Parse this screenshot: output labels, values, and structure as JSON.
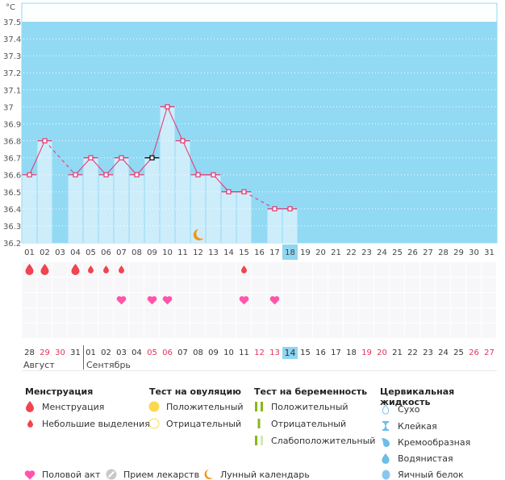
{
  "chart_data": {
    "type": "line",
    "unit_label": "°C",
    "y_ticks": [
      "37.5",
      "37.4",
      "37.3",
      "37.2",
      "37.1",
      "37",
      "36.9",
      "36.8",
      "36.7",
      "36.6",
      "36.5",
      "36.4",
      "36.3",
      "36.2"
    ],
    "ylim": [
      36.2,
      37.5
    ],
    "x_ticks": [
      "01",
      "02",
      "03",
      "04",
      "05",
      "06",
      "07",
      "08",
      "09",
      "10",
      "11",
      "12",
      "13",
      "14",
      "15",
      "16",
      "17",
      "18",
      "19",
      "20",
      "21",
      "22",
      "23",
      "24",
      "25",
      "26",
      "27",
      "28",
      "29",
      "30",
      "31"
    ],
    "current_day": "18",
    "grid": "dotted-horizontal",
    "series": [
      {
        "name": "temperature",
        "points": [
          {
            "day": 1,
            "value": 36.6
          },
          {
            "day": 2,
            "value": 36.8
          },
          {
            "day": 4,
            "value": 36.6
          },
          {
            "day": 5,
            "value": 36.7
          },
          {
            "day": 6,
            "value": 36.6
          },
          {
            "day": 7,
            "value": 36.7
          },
          {
            "day": 8,
            "value": 36.6
          },
          {
            "day": 9,
            "value": 36.7,
            "highlight": true
          },
          {
            "day": 10,
            "value": 37.0
          },
          {
            "day": 11,
            "value": 36.8
          },
          {
            "day": 12,
            "value": 36.6
          },
          {
            "day": 13,
            "value": 36.6
          },
          {
            "day": 14,
            "value": 36.5
          },
          {
            "day": 15,
            "value": 36.5
          },
          {
            "day": 17,
            "value": 36.4
          },
          {
            "day": 18,
            "value": 36.4
          }
        ],
        "dashed_gaps": [
          [
            2,
            4
          ],
          [
            15,
            17
          ]
        ]
      }
    ],
    "moon_marker_day": 12
  },
  "colors": {
    "plot_bg": "#92d9f4",
    "bar_fill": "#cdedfb",
    "line": "#e8306a",
    "menstruation": "#f04450",
    "heart": "#ff55aa",
    "moon": "#f0931c",
    "ovulation_pos": "#fcd850",
    "pregnancy": "#88b818",
    "pregnancy_weak": "#d6e8b4",
    "cervical": "#88c8ee",
    "weekend": "#e8305a",
    "today_bg": "#8fd6f2"
  },
  "events": {
    "menstruation_heavy_days": [
      1,
      2,
      4
    ],
    "menstruation_light_days": [
      5,
      6,
      7,
      15
    ],
    "intercourse_days": [
      7,
      9,
      10,
      15,
      17
    ]
  },
  "calendar": {
    "dates": [
      {
        "label": "28",
        "weekend": false
      },
      {
        "label": "29",
        "weekend": true
      },
      {
        "label": "30",
        "weekend": true
      },
      {
        "label": "31",
        "weekend": false
      },
      {
        "label": "01",
        "weekend": false
      },
      {
        "label": "02",
        "weekend": false
      },
      {
        "label": "03",
        "weekend": false
      },
      {
        "label": "04",
        "weekend": false
      },
      {
        "label": "05",
        "weekend": true
      },
      {
        "label": "06",
        "weekend": true
      },
      {
        "label": "07",
        "weekend": false
      },
      {
        "label": "08",
        "weekend": false
      },
      {
        "label": "09",
        "weekend": false
      },
      {
        "label": "10",
        "weekend": false
      },
      {
        "label": "11",
        "weekend": false
      },
      {
        "label": "12",
        "weekend": true
      },
      {
        "label": "13",
        "weekend": true
      },
      {
        "label": "14",
        "weekend": false,
        "today": true
      },
      {
        "label": "15",
        "weekend": false
      },
      {
        "label": "16",
        "weekend": false
      },
      {
        "label": "17",
        "weekend": false
      },
      {
        "label": "18",
        "weekend": false
      },
      {
        "label": "19",
        "weekend": true
      },
      {
        "label": "20",
        "weekend": true
      },
      {
        "label": "21",
        "weekend": false
      },
      {
        "label": "22",
        "weekend": false
      },
      {
        "label": "23",
        "weekend": false
      },
      {
        "label": "24",
        "weekend": false
      },
      {
        "label": "25",
        "weekend": false
      },
      {
        "label": "26",
        "weekend": true
      },
      {
        "label": "27",
        "weekend": true
      }
    ],
    "months": [
      "Август",
      "Сентябрь"
    ]
  },
  "legend": {
    "menstruation": {
      "title": "Менструация",
      "items": [
        {
          "icon": "drop-large-icon",
          "label": "Менструация"
        },
        {
          "icon": "drop-small-icon",
          "label": "Небольшие выделения"
        }
      ]
    },
    "ovulation_test": {
      "title": "Тест на овуляцию",
      "items": [
        {
          "icon": "circle-filled-icon",
          "label": "Положительный"
        },
        {
          "icon": "circle-outline-icon",
          "label": "Отрицательный"
        }
      ]
    },
    "pregnancy_test": {
      "title": "Тест на беременность",
      "items": [
        {
          "icon": "two-bars-icon",
          "label": "Положительный"
        },
        {
          "icon": "one-bar-icon",
          "label": "Отрицательный"
        },
        {
          "icon": "faint-bars-icon",
          "label": "Слабоположительный"
        }
      ]
    },
    "cervical": {
      "title": "Цервикальная жидкость",
      "items": [
        {
          "icon": "drop-outline-icon",
          "label": "Сухо"
        },
        {
          "icon": "hourglass-icon",
          "label": "Клейкая"
        },
        {
          "icon": "half-drop-icon",
          "label": "Кремообразная"
        },
        {
          "icon": "water-drop-icon",
          "label": "Водянистая"
        },
        {
          "icon": "egg-icon",
          "label": "Яичный белок"
        }
      ]
    },
    "other": [
      {
        "icon": "heart-icon",
        "label": "Половой акт"
      },
      {
        "icon": "pill-icon",
        "label": "Прием лекарств"
      },
      {
        "icon": "moon-icon",
        "label": "Лунный календарь"
      }
    ]
  }
}
